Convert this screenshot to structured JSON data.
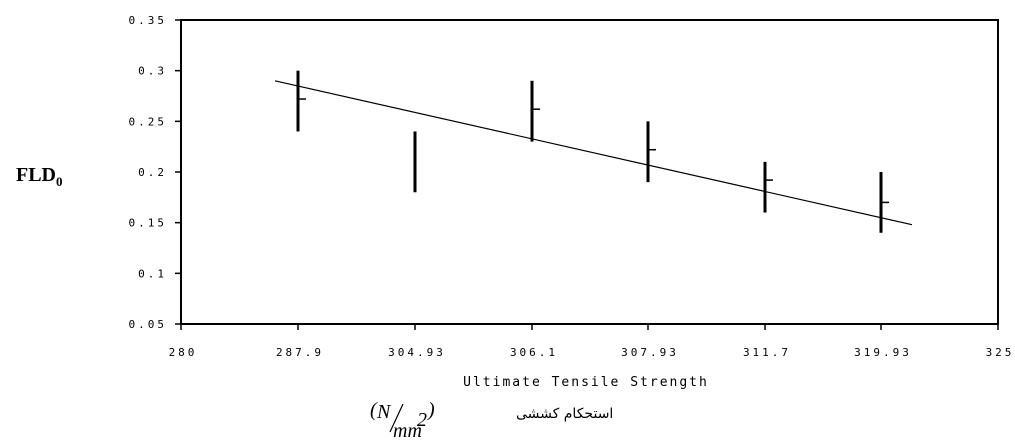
{
  "chart_data": {
    "type": "scatter",
    "ylabel_main": "FLD",
    "ylabel_sub": "0",
    "xlabel": "Ultimate Tensile Strength",
    "xlabel_fa": "استحکام کششی",
    "unit_paren_open": "(",
    "unit_paren_close": ")",
    "unit_numerator": "N",
    "unit_denominator": "mm",
    "unit_power": "2",
    "xlim": [
      280,
      325
    ],
    "ylim": [
      0.05,
      0.35
    ],
    "x_tick_values": [
      280,
      287.9,
      304.93,
      306.1,
      307.93,
      311.7,
      319.93,
      325
    ],
    "x_tick_labels": [
      "280",
      "287.9",
      "304.93",
      "306.1",
      "307.93",
      "311.7",
      "319.93",
      "325"
    ],
    "y_tick_values": [
      0.05,
      0.1,
      0.15,
      0.2,
      0.25,
      0.3,
      0.35
    ],
    "y_tick_labels": [
      "0.05",
      "0.1",
      "0.15",
      "0.2",
      "0.25",
      "0.3",
      "0.35"
    ],
    "points": [
      {
        "x": 287.9,
        "low": 0.24,
        "high": 0.3,
        "mean": 0.272
      },
      {
        "x": 304.93,
        "low": 0.18,
        "high": 0.24,
        "mean": null
      },
      {
        "x": 306.1,
        "low": 0.23,
        "high": 0.29,
        "mean": 0.262
      },
      {
        "x": 307.93,
        "low": 0.19,
        "high": 0.25,
        "mean": 0.222
      },
      {
        "x": 311.7,
        "low": 0.16,
        "high": 0.21,
        "mean": 0.192
      },
      {
        "x": 319.93,
        "low": 0.14,
        "high": 0.2,
        "mean": 0.17
      }
    ],
    "trendline": {
      "x_start": 286.2,
      "y_start": 0.29,
      "x_end": 322.4,
      "y_end": 0.148
    },
    "grid": false,
    "legend": "none"
  }
}
